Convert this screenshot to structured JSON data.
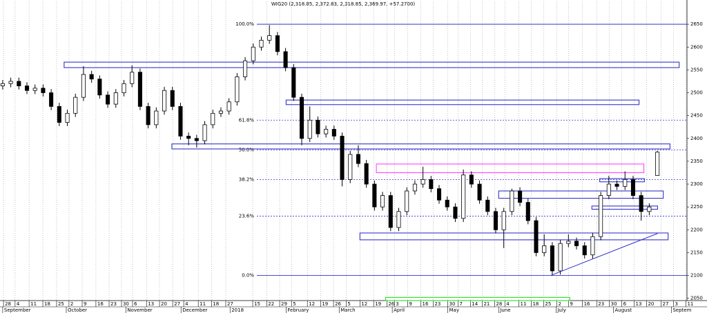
{
  "chart_data": {
    "type": "candlestick",
    "title": "WIG20 (2,318.85, 2,372.83, 2,318.85, 2,369.97, +57.2700)",
    "x": [
      1,
      4,
      7,
      10,
      13,
      16,
      19,
      22,
      25,
      28,
      31,
      34,
      37,
      40,
      43,
      46,
      49,
      52,
      55,
      58,
      61,
      64,
      67,
      70,
      73,
      76,
      79,
      82,
      85,
      88,
      91,
      94,
      97,
      100,
      103,
      106,
      109,
      112,
      115,
      118,
      121,
      124,
      127,
      130,
      133,
      136,
      139,
      142,
      145,
      148,
      151,
      154,
      157,
      160,
      163,
      166,
      169,
      172,
      175,
      178,
      181,
      184,
      187,
      190,
      193,
      196,
      199,
      202,
      205,
      208,
      211,
      214,
      217,
      220,
      223,
      226,
      229,
      232,
      235,
      238,
      241,
      244
    ],
    "open": [
      2515,
      2520,
      2525,
      2515,
      2505,
      2510,
      2500,
      2470,
      2435,
      2455,
      2490,
      2540,
      2530,
      2495,
      2475,
      2500,
      2520,
      2545,
      2470,
      2430,
      2460,
      2505,
      2470,
      2405,
      2400,
      2395,
      2430,
      2455,
      2460,
      2480,
      2535,
      2570,
      2600,
      2615,
      2625,
      2590,
      2555,
      2490,
      2400,
      2440,
      2410,
      2420,
      2405,
      2310,
      2365,
      2345,
      2300,
      2250,
      2275,
      2205,
      2240,
      2285,
      2300,
      2310,
      2290,
      2265,
      2250,
      2225,
      2320,
      2300,
      2265,
      2240,
      2200,
      2240,
      2285,
      2260,
      2220,
      2150,
      2165,
      2110,
      2170,
      2175,
      2165,
      2145,
      2185,
      2275,
      2300,
      2295,
      2310,
      2275,
      2240,
      2318.85
    ],
    "high": [
      2528,
      2533,
      2533,
      2523,
      2518,
      2518,
      2508,
      2478,
      2463,
      2498,
      2558,
      2548,
      2538,
      2503,
      2508,
      2528,
      2560,
      2553,
      2478,
      2468,
      2513,
      2513,
      2478,
      2413,
      2408,
      2438,
      2463,
      2468,
      2488,
      2543,
      2578,
      2608,
      2623,
      2648,
      2633,
      2598,
      2563,
      2498,
      2470,
      2448,
      2428,
      2428,
      2413,
      2373,
      2385,
      2353,
      2308,
      2283,
      2283,
      2248,
      2293,
      2308,
      2338,
      2318,
      2298,
      2273,
      2258,
      2332,
      2328,
      2308,
      2273,
      2248,
      2248,
      2290,
      2293,
      2268,
      2228,
      2190,
      2173,
      2178,
      2190,
      2183,
      2173,
      2193,
      2283,
      2318,
      2308,
      2328,
      2318,
      2283,
      2258,
      2372.83
    ],
    "low": [
      2507,
      2512,
      2507,
      2497,
      2497,
      2492,
      2462,
      2427,
      2427,
      2447,
      2482,
      2522,
      2487,
      2467,
      2467,
      2492,
      2512,
      2462,
      2422,
      2422,
      2452,
      2462,
      2397,
      2385,
      2380,
      2387,
      2422,
      2447,
      2452,
      2472,
      2527,
      2562,
      2592,
      2607,
      2582,
      2547,
      2482,
      2385,
      2392,
      2402,
      2402,
      2397,
      2295,
      2302,
      2337,
      2292,
      2242,
      2242,
      2197,
      2197,
      2232,
      2277,
      2292,
      2282,
      2257,
      2242,
      2217,
      2217,
      2292,
      2257,
      2232,
      2192,
      2160,
      2232,
      2252,
      2212,
      2142,
      2142,
      2100,
      2102,
      2162,
      2157,
      2137,
      2137,
      2177,
      2267,
      2287,
      2287,
      2267,
      2220,
      2232,
      2318.85
    ],
    "close": [
      2520,
      2525,
      2515,
      2505,
      2510,
      2500,
      2470,
      2435,
      2455,
      2490,
      2540,
      2530,
      2495,
      2475,
      2500,
      2520,
      2545,
      2470,
      2430,
      2460,
      2505,
      2470,
      2405,
      2400,
      2395,
      2430,
      2455,
      2460,
      2480,
      2535,
      2570,
      2600,
      2615,
      2625,
      2590,
      2555,
      2490,
      2400,
      2440,
      2410,
      2420,
      2405,
      2310,
      2365,
      2345,
      2300,
      2250,
      2275,
      2205,
      2240,
      2285,
      2300,
      2310,
      2290,
      2265,
      2250,
      2225,
      2320,
      2300,
      2265,
      2240,
      2200,
      2240,
      2285,
      2260,
      2220,
      2150,
      2165,
      2110,
      2170,
      2175,
      2165,
      2145,
      2185,
      2275,
      2300,
      2295,
      2310,
      2275,
      2240,
      2250,
      2369.97
    ],
    "ylim": [
      2045,
      2700
    ],
    "yticks": [
      2050,
      2100,
      2150,
      2200,
      2250,
      2300,
      2350,
      2400,
      2450,
      2500,
      2550,
      2600,
      2650
    ],
    "xlim": [
      0,
      255
    ],
    "xticks": [
      {
        "value": 1.3,
        "label": "28"
      },
      {
        "value": 5.6,
        "label": "4"
      },
      {
        "value": 10.8,
        "label": "11"
      },
      {
        "value": 15.9,
        "label": "18"
      },
      {
        "value": 21,
        "label": "25"
      },
      {
        "value": 25.6,
        "label": "2"
      },
      {
        "value": 30.5,
        "label": "9"
      },
      {
        "value": 35.6,
        "label": "16"
      },
      {
        "value": 40.5,
        "label": "23"
      },
      {
        "value": 45.1,
        "label": "30"
      },
      {
        "value": 49.2,
        "label": "6"
      },
      {
        "value": 54.4,
        "label": "13"
      },
      {
        "value": 59.2,
        "label": "20"
      },
      {
        "value": 64.1,
        "label": "27"
      },
      {
        "value": 68.2,
        "label": "4"
      },
      {
        "value": 73.6,
        "label": "11"
      },
      {
        "value": 78.5,
        "label": "18"
      },
      {
        "value": 83.8,
        "label": "27"
      },
      {
        "value": 93.8,
        "label": "15"
      },
      {
        "value": 99,
        "label": "22"
      },
      {
        "value": 103.8,
        "label": "29"
      },
      {
        "value": 108.2,
        "label": "5"
      },
      {
        "value": 114.1,
        "label": "12"
      },
      {
        "value": 119,
        "label": "19"
      },
      {
        "value": 123.8,
        "label": "26"
      },
      {
        "value": 128.5,
        "label": "5"
      },
      {
        "value": 133.6,
        "label": "12"
      },
      {
        "value": 138.7,
        "label": "19"
      },
      {
        "value": 143.6,
        "label": "26"
      },
      {
        "value": 146.4,
        "label": "3"
      },
      {
        "value": 151.3,
        "label": "9"
      },
      {
        "value": 156.2,
        "label": "16"
      },
      {
        "value": 160.8,
        "label": "23"
      },
      {
        "value": 166.2,
        "label": "30"
      },
      {
        "value": 170,
        "label": "7"
      },
      {
        "value": 174.6,
        "label": "14"
      },
      {
        "value": 179,
        "label": "21"
      },
      {
        "value": 183.6,
        "label": "28"
      },
      {
        "value": 187.4,
        "label": "4"
      },
      {
        "value": 192.6,
        "label": "11"
      },
      {
        "value": 197.2,
        "label": "18"
      },
      {
        "value": 201.8,
        "label": "25"
      },
      {
        "value": 206.7,
        "label": "2"
      },
      {
        "value": 211,
        "label": "9"
      },
      {
        "value": 216.2,
        "label": "16"
      },
      {
        "value": 221.5,
        "label": "23"
      },
      {
        "value": 226.2,
        "label": "30"
      },
      {
        "value": 230.8,
        "label": "6"
      },
      {
        "value": 235.4,
        "label": "13"
      },
      {
        "value": 240,
        "label": "20"
      },
      {
        "value": 245.4,
        "label": "27"
      },
      {
        "value": 250,
        "label": "3"
      },
      {
        "value": 254.6,
        "label": "11"
      }
    ],
    "month_labels": [
      {
        "value": 1,
        "label": "September"
      },
      {
        "value": 24.6,
        "label": "October"
      },
      {
        "value": 46.7,
        "label": "November"
      },
      {
        "value": 67.2,
        "label": "December"
      },
      {
        "value": 85.4,
        "label": "2018"
      },
      {
        "value": 106.2,
        "label": "February"
      },
      {
        "value": 125.9,
        "label": "March"
      },
      {
        "value": 145.6,
        "label": "April"
      },
      {
        "value": 166.2,
        "label": "May"
      },
      {
        "value": 185.1,
        "label": "June"
      },
      {
        "value": 206.4,
        "label": "July"
      },
      {
        "value": 227.7,
        "label": "August"
      },
      {
        "value": 249.2,
        "label": "Septem"
      }
    ],
    "fib_levels": [
      {
        "value": 2650,
        "label": "100.0%"
      },
      {
        "value": 2440,
        "label": "61.8%"
      },
      {
        "value": 2375,
        "label": "50.0%"
      },
      {
        "value": 2310,
        "label": "38.2%"
      },
      {
        "value": 2230,
        "label": "23.6%"
      },
      {
        "value": 2100,
        "label": "0.0%"
      }
    ],
    "fib_color": "#3333cc",
    "zones": [
      {
        "x": [
          23.8,
          252.1
        ],
        "y": [
          2555,
          2567
        ],
        "color": "#3333cc"
      },
      {
        "x": [
          106.2,
          237.2
        ],
        "y": [
          2474,
          2484
        ],
        "color": "#3333cc"
      },
      {
        "x": [
          63.8,
          248.7
        ],
        "y": [
          2377,
          2388
        ],
        "color": "#3333cc"
      },
      {
        "x": [
          139.7,
          239
        ],
        "y": [
          2325,
          2344
        ],
        "color": "#ff44ff"
      },
      {
        "x": [
          222.6,
          239.2
        ],
        "y": [
          2305,
          2312
        ],
        "color": "#3333cc"
      },
      {
        "x": [
          185.1,
          246.2
        ],
        "y": [
          2269,
          2285
        ],
        "color": "#3333cc"
      },
      {
        "x": [
          219.7,
          244.1
        ],
        "y": [
          2245,
          2252
        ],
        "color": "#3333cc"
      },
      {
        "x": [
          133.6,
          248
        ],
        "y": [
          2178,
          2193
        ],
        "color": "#3333cc"
      },
      {
        "x": [
          143.1,
          211.5
        ],
        "y": [
          2045,
          2052
        ],
        "color": "#22dd22"
      }
    ],
    "trendline": {
      "x": [
        204.4,
        244.1
      ],
      "y": [
        2100,
        2192
      ],
      "color": "#3333cc"
    },
    "grid": true
  }
}
